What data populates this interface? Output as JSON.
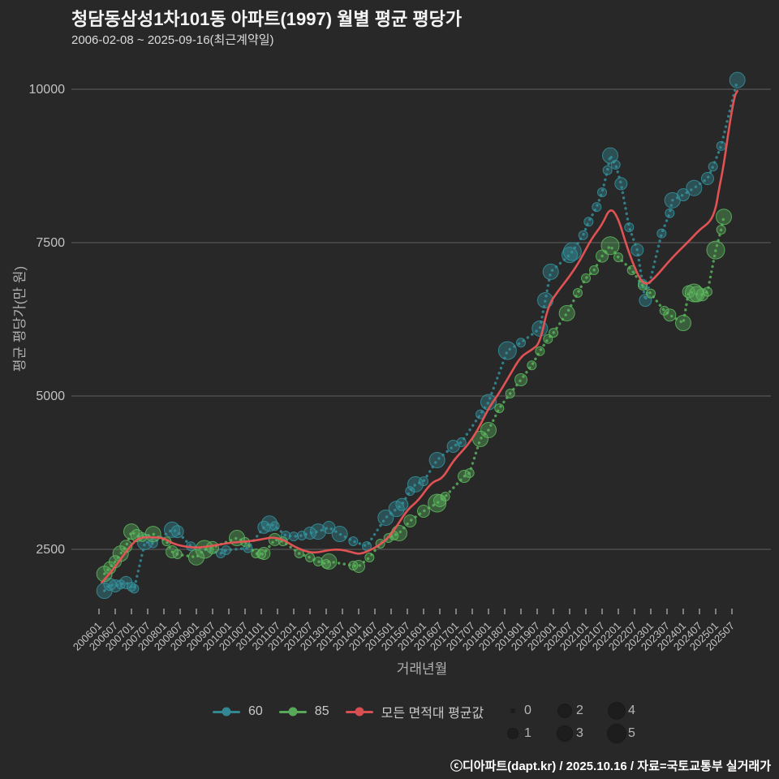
{
  "page": {
    "title": "청담동삼성1차101동 아파트(1997) 월별 평균 평당가",
    "subtitle": "2006-02-08 ~ 2025-09-16(최근계약일)",
    "footer": "ⓒ디아파트(dapt.kr) / 2025.10.16 / 자료=국토교통부 실거래가"
  },
  "chart_data": {
    "type": "scatter",
    "title": "청담동삼성1차101동 아파트(1997) 월별 평균 평당가",
    "subtitle": "2006-02-08 ~ 2025-09-16(최근계약일)",
    "xlabel": "거래년월",
    "ylabel": "평균 평당가(만 원)",
    "grid": "horizontal-only",
    "y_ticks": [
      2500,
      5000,
      7500,
      10000
    ],
    "y_domain": [
      1500,
      10450
    ],
    "x_domain": [
      "2006-01",
      "2025-09"
    ],
    "x_ticks": [
      "200601",
      "200607",
      "200701",
      "200707",
      "200801",
      "200807",
      "200901",
      "200907",
      "201001",
      "201007",
      "201101",
      "201107",
      "201201",
      "201207",
      "201301",
      "201307",
      "201401",
      "201407",
      "201501",
      "201507",
      "201601",
      "201607",
      "201701",
      "201707",
      "201801",
      "201807",
      "201901",
      "201907",
      "202001",
      "202007",
      "202101",
      "202107",
      "202201",
      "202207",
      "202301",
      "202307",
      "202401",
      "202407",
      "202501",
      "202507"
    ],
    "legend": [
      {
        "label": "60",
        "color": "#35929f"
      },
      {
        "label": "85",
        "color": "#5db85e"
      },
      {
        "label": "모든 면적대 평균값",
        "color": "#ea5455"
      }
    ],
    "size_legend": {
      "labels": [
        "0",
        "1",
        "2",
        "3",
        "4",
        "5"
      ]
    },
    "colors": {
      "s60": "#35929f",
      "s85": "#5db85e",
      "avg": "#ea5455",
      "grid": "#8c8c8c",
      "tick_text": "#c2c2c2",
      "axis_title": "#b0b0b0"
    },
    "series": [
      {
        "id": "s60",
        "name": "60",
        "style": "dotted-scatter",
        "points": [
          [
            "2006-03",
            1825,
            3
          ],
          [
            "2006-05",
            1930,
            2
          ],
          [
            "2006-07",
            1905,
            2
          ],
          [
            "2006-09",
            1930,
            1
          ],
          [
            "2006-11",
            1960,
            2
          ],
          [
            "2007-01",
            1890,
            1
          ],
          [
            "2007-02",
            1860,
            1
          ],
          [
            "2007-06",
            2620,
            3
          ],
          [
            "2007-09",
            2600,
            1
          ],
          [
            "2008-04",
            2820,
            3
          ],
          [
            "2008-06",
            2790,
            2
          ],
          [
            "2008-11",
            2550,
            1
          ],
          [
            "2009-10",
            2434,
            1
          ],
          [
            "2009-12",
            2487,
            1
          ],
          [
            "2010-08",
            2520,
            1
          ],
          [
            "2011-02",
            2860,
            2
          ],
          [
            "2011-04",
            2920,
            3
          ],
          [
            "2011-06",
            2880,
            1
          ],
          [
            "2011-10",
            2725,
            1
          ],
          [
            "2012-01",
            2710,
            1
          ],
          [
            "2012-04",
            2725,
            1
          ],
          [
            "2012-07",
            2765,
            2
          ],
          [
            "2012-10",
            2790,
            3
          ],
          [
            "2013-02",
            2857,
            2
          ],
          [
            "2013-06",
            2751,
            3
          ],
          [
            "2013-11",
            2632,
            1
          ],
          [
            "2014-04",
            2553,
            1
          ],
          [
            "2014-11",
            3016,
            3
          ],
          [
            "2015-03",
            3160,
            3
          ],
          [
            "2015-05",
            3230,
            2
          ],
          [
            "2015-08",
            3450,
            1
          ],
          [
            "2015-10",
            3560,
            3
          ],
          [
            "2016-01",
            3610,
            1
          ],
          [
            "2016-06",
            3955,
            3
          ],
          [
            "2016-12",
            4180,
            2
          ],
          [
            "2017-03",
            4246,
            1
          ],
          [
            "2017-10",
            4700,
            1
          ],
          [
            "2018-01",
            4900,
            3
          ],
          [
            "2018-08",
            5740,
            4
          ],
          [
            "2019-01",
            5870,
            1
          ],
          [
            "2019-08",
            6100,
            3
          ],
          [
            "2019-10",
            6560,
            3
          ],
          [
            "2019-12",
            7025,
            3
          ],
          [
            "2020-07",
            7300,
            3
          ],
          [
            "2020-08",
            7355,
            4
          ],
          [
            "2020-12",
            7620,
            1
          ],
          [
            "2021-02",
            7840,
            1
          ],
          [
            "2021-05",
            8080,
            1
          ],
          [
            "2021-07",
            8320,
            1
          ],
          [
            "2021-09",
            8680,
            1
          ],
          [
            "2021-10",
            8920,
            3
          ],
          [
            "2021-12",
            8770,
            1
          ],
          [
            "2022-02",
            8460,
            2
          ],
          [
            "2022-05",
            7750,
            1
          ],
          [
            "2022-08",
            7380,
            2
          ],
          [
            "2022-10",
            6830,
            1
          ],
          [
            "2022-11",
            6560,
            2
          ],
          [
            "2023-05",
            7650,
            1
          ],
          [
            "2023-08",
            7980,
            1
          ],
          [
            "2023-09",
            8190,
            3
          ],
          [
            "2024-01",
            8280,
            2
          ],
          [
            "2024-05",
            8390,
            3
          ],
          [
            "2024-10",
            8545,
            2
          ],
          [
            "2024-12",
            8740,
            1
          ],
          [
            "2025-03",
            9075,
            1
          ],
          [
            "2025-09",
            10150,
            3
          ]
        ]
      },
      {
        "id": "s85",
        "name": "85",
        "style": "dotted-scatter",
        "points": [
          [
            "2006-03",
            2100,
            3
          ],
          [
            "2006-05",
            2200,
            2
          ],
          [
            "2006-07",
            2300,
            2
          ],
          [
            "2006-09",
            2430,
            3
          ],
          [
            "2006-11",
            2550,
            2
          ],
          [
            "2007-01",
            2790,
            3
          ],
          [
            "2007-03",
            2725,
            2
          ],
          [
            "2007-05",
            2700,
            1
          ],
          [
            "2007-09",
            2750,
            3
          ],
          [
            "2008-02",
            2630,
            1
          ],
          [
            "2008-04",
            2460,
            2
          ],
          [
            "2008-06",
            2420,
            1
          ],
          [
            "2009-01",
            2370,
            3
          ],
          [
            "2009-04",
            2500,
            4
          ],
          [
            "2009-07",
            2530,
            2
          ],
          [
            "2010-04",
            2685,
            3
          ],
          [
            "2010-07",
            2620,
            1
          ],
          [
            "2010-11",
            2434,
            1
          ],
          [
            "2011-01",
            2420,
            1
          ],
          [
            "2011-02",
            2434,
            2
          ],
          [
            "2011-06",
            2660,
            2
          ],
          [
            "2011-09",
            2630,
            1
          ],
          [
            "2012-03",
            2434,
            1
          ],
          [
            "2012-07",
            2368,
            1
          ],
          [
            "2012-10",
            2302,
            1
          ],
          [
            "2013-01",
            2262,
            1
          ],
          [
            "2013-02",
            2302,
            3
          ],
          [
            "2013-11",
            2236,
            1
          ],
          [
            "2014-01",
            2222,
            2
          ],
          [
            "2014-05",
            2368,
            1
          ],
          [
            "2014-09",
            2593,
            1
          ],
          [
            "2014-12",
            2685,
            1
          ],
          [
            "2015-02",
            2725,
            1
          ],
          [
            "2015-04",
            2765,
            3
          ],
          [
            "2015-08",
            2963,
            2
          ],
          [
            "2016-01",
            3122,
            2
          ],
          [
            "2016-06",
            3254,
            4
          ],
          [
            "2016-07",
            3294,
            2
          ],
          [
            "2016-09",
            3360,
            1
          ],
          [
            "2017-04",
            3690,
            2
          ],
          [
            "2017-06",
            3743,
            1
          ],
          [
            "2017-10",
            4300,
            3
          ],
          [
            "2018-01",
            4445,
            3
          ],
          [
            "2018-05",
            4800,
            1
          ],
          [
            "2018-09",
            5040,
            1
          ],
          [
            "2019-01",
            5265,
            2
          ],
          [
            "2019-05",
            5500,
            1
          ],
          [
            "2019-08",
            5730,
            1
          ],
          [
            "2019-11",
            5930,
            1
          ],
          [
            "2020-01",
            6030,
            1
          ],
          [
            "2020-06",
            6350,
            3
          ],
          [
            "2020-10",
            6680,
            1
          ],
          [
            "2021-01",
            6920,
            1
          ],
          [
            "2021-04",
            7050,
            1
          ],
          [
            "2021-07",
            7280,
            2
          ],
          [
            "2021-10",
            7450,
            4
          ],
          [
            "2022-01",
            7260,
            1
          ],
          [
            "2022-06",
            7050,
            1
          ],
          [
            "2022-10",
            6800,
            1
          ],
          [
            "2023-01",
            6670,
            1
          ],
          [
            "2023-06",
            6390,
            1
          ],
          [
            "2023-08",
            6320,
            2
          ],
          [
            "2024-01",
            6190,
            3
          ],
          [
            "2024-03",
            6700,
            2
          ],
          [
            "2024-05",
            6680,
            4
          ],
          [
            "2024-06",
            6660,
            3
          ],
          [
            "2024-08",
            6650,
            2
          ],
          [
            "2024-10",
            6700,
            1
          ],
          [
            "2025-01",
            7380,
            4
          ],
          [
            "2025-03",
            7710,
            1
          ],
          [
            "2025-04",
            7920,
            3
          ]
        ]
      },
      {
        "id": "avg",
        "name": "모든 면적대 평균값",
        "style": "line",
        "points": [
          [
            "2006-02",
            1960
          ],
          [
            "2006-04",
            2060
          ],
          [
            "2006-06",
            2160
          ],
          [
            "2006-08",
            2280
          ],
          [
            "2006-10",
            2400
          ],
          [
            "2006-12",
            2520
          ],
          [
            "2007-02",
            2620
          ],
          [
            "2007-04",
            2690
          ],
          [
            "2007-08",
            2700
          ],
          [
            "2008-01",
            2685
          ],
          [
            "2008-04",
            2600
          ],
          [
            "2008-08",
            2550
          ],
          [
            "2009-01",
            2525
          ],
          [
            "2009-06",
            2550
          ],
          [
            "2009-11",
            2590
          ],
          [
            "2010-03",
            2615
          ],
          [
            "2010-08",
            2630
          ],
          [
            "2011-01",
            2660
          ],
          [
            "2011-05",
            2700
          ],
          [
            "2011-09",
            2660
          ],
          [
            "2012-01",
            2550
          ],
          [
            "2012-05",
            2470
          ],
          [
            "2012-09",
            2440
          ],
          [
            "2013-02",
            2490
          ],
          [
            "2013-06",
            2500
          ],
          [
            "2013-10",
            2460
          ],
          [
            "2014-01",
            2420
          ],
          [
            "2014-04",
            2460
          ],
          [
            "2014-08",
            2550
          ],
          [
            "2014-11",
            2650
          ],
          [
            "2015-02",
            2800
          ],
          [
            "2015-07",
            3150
          ],
          [
            "2015-11",
            3290
          ],
          [
            "2016-04",
            3600
          ],
          [
            "2016-08",
            3650
          ],
          [
            "2016-12",
            3950
          ],
          [
            "2017-05",
            4180
          ],
          [
            "2017-09",
            4440
          ],
          [
            "2018-01",
            4800
          ],
          [
            "2018-05",
            5050
          ],
          [
            "2018-09",
            5350
          ],
          [
            "2019-01",
            5650
          ],
          [
            "2019-05",
            5750
          ],
          [
            "2019-08",
            5860
          ],
          [
            "2019-11",
            6470
          ],
          [
            "2020-03",
            6730
          ],
          [
            "2020-07",
            6950
          ],
          [
            "2020-11",
            7220
          ],
          [
            "2021-03",
            7560
          ],
          [
            "2021-07",
            7790
          ],
          [
            "2021-10",
            8080
          ],
          [
            "2022-01",
            7900
          ],
          [
            "2022-04",
            7450
          ],
          [
            "2022-08",
            6980
          ],
          [
            "2022-11",
            6790
          ],
          [
            "2023-03",
            6950
          ],
          [
            "2023-07",
            7160
          ],
          [
            "2023-11",
            7350
          ],
          [
            "2024-03",
            7520
          ],
          [
            "2024-07",
            7710
          ],
          [
            "2024-11",
            7840
          ],
          [
            "2025-01",
            8050
          ],
          [
            "2025-02",
            8320
          ],
          [
            "2025-04",
            8770
          ],
          [
            "2025-06",
            9400
          ],
          [
            "2025-08",
            9900
          ],
          [
            "2025-09",
            9970
          ]
        ]
      }
    ]
  }
}
